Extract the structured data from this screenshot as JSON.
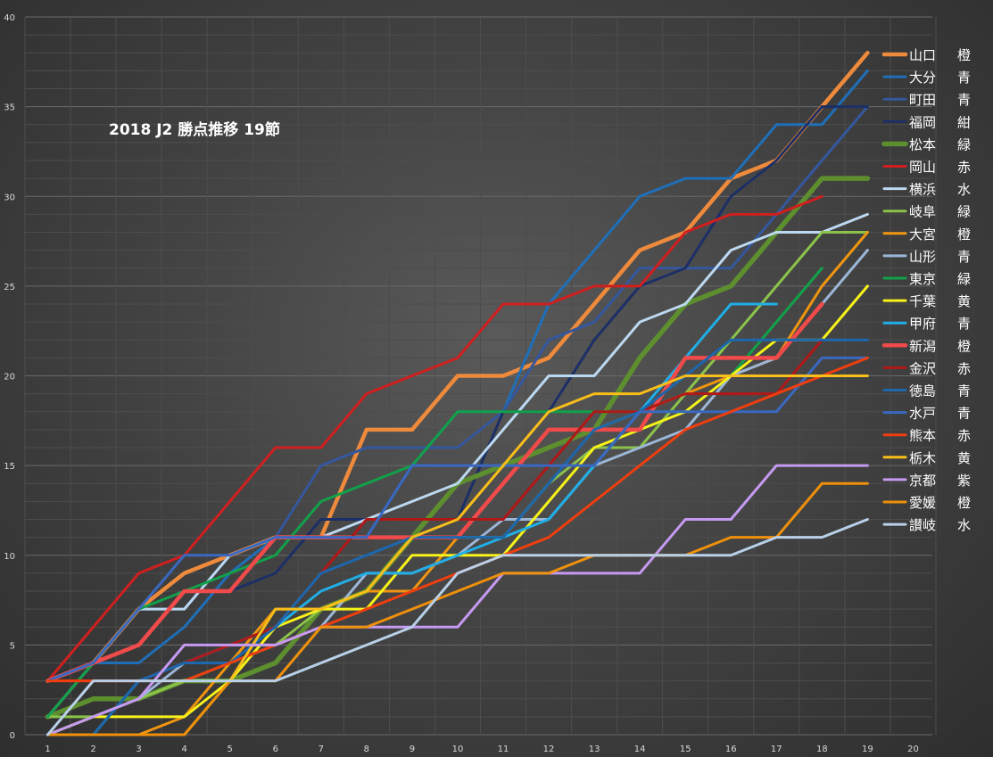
{
  "chart_data": {
    "type": "line",
    "title": "2018 J2 勝点推移 19節",
    "xlabel": "",
    "ylabel": "",
    "x": [
      1,
      2,
      3,
      4,
      5,
      6,
      7,
      8,
      9,
      10,
      11,
      12,
      13,
      14,
      15,
      16,
      17,
      18,
      19
    ],
    "x_ticks": [
      "1",
      "2",
      "3",
      "4",
      "5",
      "6",
      "7",
      "8",
      "9",
      "10",
      "11",
      "12",
      "13",
      "14",
      "15",
      "16",
      "17",
      "18",
      "19",
      "20"
    ],
    "xlim": [
      1,
      20
    ],
    "y_ticks": [
      "0",
      "5",
      "10",
      "15",
      "20",
      "25",
      "30",
      "35",
      "40"
    ],
    "ylim": [
      0,
      40
    ],
    "grid": true,
    "legend_position": "right",
    "series": [
      {
        "label": "山口",
        "note": "橙",
        "color": "#ee8a3c",
        "width": 4.5,
        "values": [
          3,
          4,
          7,
          9,
          10,
          11,
          11,
          17,
          17,
          20,
          20,
          21,
          24,
          27,
          28,
          31,
          32,
          35,
          38
        ]
      },
      {
        "label": "大分",
        "note": "青",
        "color": "#1f6fb8",
        "width": 3,
        "values": [
          3,
          4,
          4,
          6,
          9,
          11,
          11,
          11,
          15,
          18,
          18,
          24,
          27,
          30,
          31,
          31,
          34,
          34,
          37
        ]
      },
      {
        "label": "町田",
        "note": "青",
        "color": "#34579e",
        "width": 3,
        "values": [
          3,
          4,
          7,
          7,
          10,
          11,
          15,
          16,
          16,
          16,
          18,
          22,
          23,
          26,
          26,
          26,
          29,
          32,
          35
        ]
      },
      {
        "label": "福岡",
        "note": "紺",
        "color": "#1c2f66",
        "width": 3,
        "values": [
          3,
          4,
          5,
          8,
          8,
          9,
          12,
          12,
          12,
          12,
          18,
          18,
          22,
          25,
          26,
          30,
          32,
          35,
          35
        ]
      },
      {
        "label": "松本",
        "note": "緑",
        "color": "#5e8f2f",
        "width": 5.5,
        "values": [
          1,
          2,
          2,
          3,
          3,
          4,
          7,
          8,
          11,
          14,
          15,
          16,
          17,
          21,
          24,
          25,
          28,
          31,
          31
        ]
      },
      {
        "label": "岡山",
        "note": "赤",
        "color": "#d01f1f",
        "width": 3,
        "values": [
          3,
          6,
          9,
          10,
          13,
          16,
          16,
          19,
          20,
          21,
          24,
          24,
          25,
          25,
          28,
          29,
          29,
          30,
          null
        ]
      },
      {
        "label": "横浜",
        "note": "水",
        "color": "#bcd8f0",
        "width": 3,
        "values": [
          1,
          4,
          7,
          7,
          10,
          11,
          11,
          12,
          13,
          14,
          17,
          20,
          20,
          23,
          24,
          27,
          28,
          28,
          29
        ]
      },
      {
        "label": "岐阜",
        "note": "緑",
        "color": "#8bc34a",
        "width": 3,
        "values": [
          1,
          1,
          2,
          3,
          4,
          5,
          7,
          8,
          11,
          11,
          11,
          14,
          16,
          16,
          19,
          22,
          25,
          28,
          28
        ]
      },
      {
        "label": "大宮",
        "note": "橙",
        "color": "#f0950f",
        "width": 3,
        "values": [
          0,
          0,
          0,
          1,
          4,
          7,
          7,
          8,
          8,
          11,
          14,
          17,
          17,
          18,
          19,
          20,
          21,
          25,
          28
        ]
      },
      {
        "label": "山形",
        "note": "青",
        "color": "#9cb6d8",
        "width": 3,
        "values": [
          0,
          1,
          2,
          4,
          5,
          5,
          6,
          9,
          9,
          10,
          12,
          12,
          15,
          16,
          17,
          20,
          21,
          24,
          27
        ]
      },
      {
        "label": "東京",
        "note": "緑",
        "color": "#12a04a",
        "width": 3,
        "values": [
          1,
          4,
          7,
          8,
          9,
          10,
          13,
          14,
          15,
          18,
          18,
          18,
          18,
          18,
          18,
          20,
          23,
          26,
          null
        ]
      },
      {
        "label": "千葉",
        "note": "黄",
        "color": "#f6f21a",
        "width": 3,
        "values": [
          0,
          1,
          1,
          1,
          3,
          6,
          7,
          7,
          10,
          10,
          10,
          13,
          16,
          17,
          18,
          20,
          22,
          22,
          25
        ]
      },
      {
        "label": "甲府",
        "note": "青",
        "color": "#20aee6",
        "width": 3,
        "values": [
          0,
          0,
          3,
          4,
          5,
          6,
          8,
          9,
          9,
          10,
          11,
          12,
          15,
          18,
          21,
          24,
          24,
          null,
          null
        ]
      },
      {
        "label": "新潟",
        "note": "橙",
        "color": "#f04a4a",
        "width": 4.5,
        "values": [
          3,
          4,
          5,
          8,
          8,
          11,
          11,
          11,
          11,
          11,
          14,
          17,
          17,
          17,
          21,
          21,
          21,
          24,
          null
        ]
      },
      {
        "label": "金沢",
        "note": "赤",
        "color": "#b01818",
        "width": 3,
        "values": [
          3,
          3,
          3,
          4,
          5,
          6,
          9,
          12,
          12,
          12,
          12,
          15,
          18,
          18,
          19,
          19,
          19,
          22,
          null
        ]
      },
      {
        "label": "徳島",
        "note": "青",
        "color": "#1c67ad",
        "width": 3,
        "values": [
          0,
          0,
          3,
          4,
          4,
          6,
          9,
          10,
          11,
          11,
          11,
          14,
          17,
          18,
          20,
          22,
          22,
          22,
          22
        ]
      },
      {
        "label": "水戸",
        "note": "青",
        "color": "#3a68c0",
        "width": 3,
        "values": [
          3,
          4,
          7,
          10,
          10,
          11,
          11,
          11,
          15,
          15,
          15,
          15,
          15,
          18,
          18,
          18,
          18,
          21,
          21
        ]
      },
      {
        "label": "熊本",
        "note": "赤",
        "color": "#f03e0e",
        "width": 3,
        "values": [
          3,
          3,
          3,
          3,
          4,
          5,
          6,
          7,
          8,
          9,
          10,
          11,
          13,
          15,
          17,
          18,
          19,
          20,
          21
        ]
      },
      {
        "label": "栃木",
        "note": "黄",
        "color": "#f8be1a",
        "width": 3,
        "values": [
          0,
          0,
          0,
          0,
          3,
          7,
          7,
          8,
          11,
          12,
          15,
          18,
          19,
          19,
          20,
          20,
          20,
          20,
          20
        ]
      },
      {
        "label": "京都",
        "note": "紫",
        "color": "#c59af0",
        "width": 3,
        "values": [
          0,
          1,
          2,
          5,
          5,
          5,
          6,
          6,
          6,
          6,
          9,
          9,
          9,
          9,
          12,
          12,
          15,
          15,
          15
        ]
      },
      {
        "label": "愛媛",
        "note": "橙",
        "color": "#ee900c",
        "width": 3,
        "values": [
          0,
          0,
          0,
          0,
          3,
          3,
          6,
          6,
          7,
          8,
          9,
          9,
          10,
          10,
          10,
          11,
          11,
          14,
          14
        ]
      },
      {
        "label": "讃岐",
        "note": "水",
        "color": "#b8d0e8",
        "width": 3,
        "values": [
          0,
          3,
          3,
          3,
          3,
          3,
          4,
          5,
          6,
          9,
          10,
          10,
          10,
          10,
          10,
          10,
          11,
          11,
          12
        ]
      }
    ]
  }
}
